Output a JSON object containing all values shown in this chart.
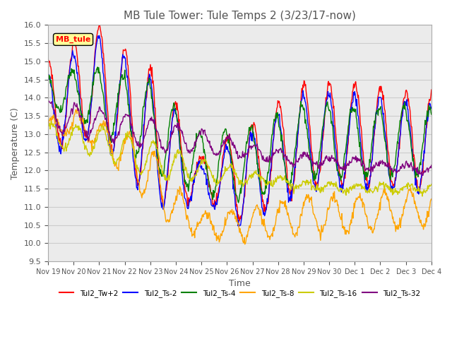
{
  "title": "MB Tule Tower: Tule Temps 2 (3/23/17-now)",
  "ylabel": "Temperature (C)",
  "xlabel": "Time",
  "ylim": [
    9.5,
    16.0
  ],
  "yticks": [
    9.5,
    10.0,
    10.5,
    11.0,
    11.5,
    12.0,
    12.5,
    13.0,
    13.5,
    14.0,
    14.5,
    15.0,
    15.5,
    16.0
  ],
  "xtick_labels": [
    "Nov 19",
    "Nov 20",
    "Nov 21",
    "Nov 22",
    "Nov 23",
    "Nov 24",
    "Nov 25",
    "Nov 26",
    "Nov 27",
    "Nov 28",
    "Nov 29",
    "Nov 30",
    "Dec 1",
    "Dec 2",
    "Dec 3",
    "Dec 4"
  ],
  "series_colors": [
    "red",
    "blue",
    "green",
    "orange",
    "#cccc00",
    "purple"
  ],
  "series_labels": [
    "Tul2_Tw+2",
    "Tul2_Ts-2",
    "Tul2_Ts-4",
    "Tul2_Ts-8",
    "Tul2_Ts-16",
    "Tul2_Ts-32"
  ],
  "legend_box_color": "#FFFF99",
  "legend_box_label": "MB_tule",
  "background_color": "#ffffff",
  "grid_color": "#cccccc",
  "title_color": "#555555",
  "title_fontsize": 11,
  "label_fontsize": 9,
  "tick_fontsize": 8
}
